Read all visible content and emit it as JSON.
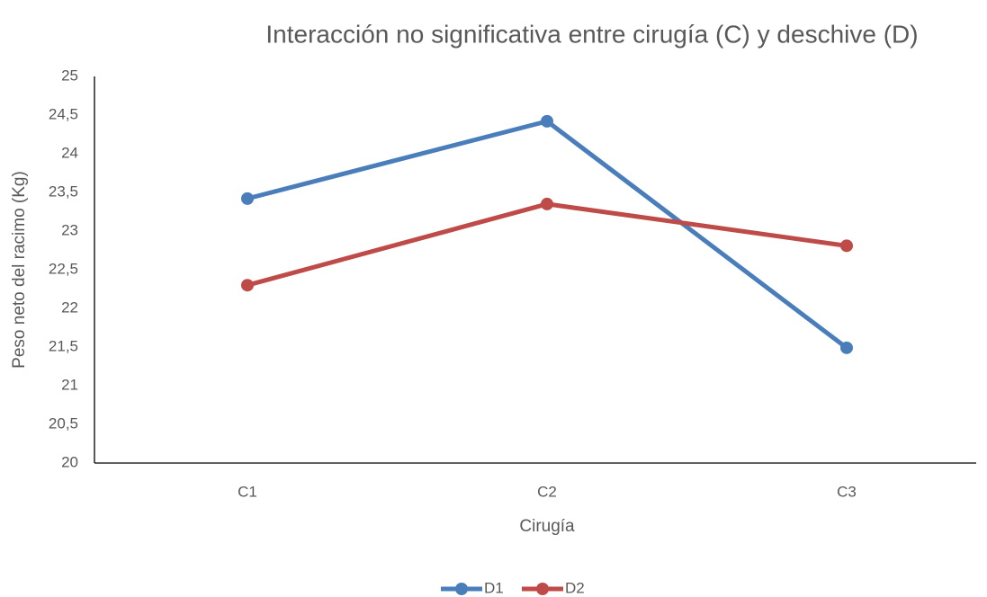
{
  "chart_data": {
    "type": "line",
    "title": "Interacción no significativa entre cirugía (C) y deschive (D)",
    "x_label": "Cirugía",
    "y_label": "Peso neto del racimo (Kg)",
    "categories": [
      "C1",
      "C2",
      "C3"
    ],
    "series": [
      {
        "name": "D1",
        "color": "#4a7ebb",
        "values": [
          23.42,
          24.42,
          21.49
        ]
      },
      {
        "name": "D2",
        "color": "#be4b48",
        "values": [
          22.3,
          23.35,
          22.81
        ]
      }
    ],
    "ylim": [
      20,
      25
    ],
    "yticks": [
      20,
      {
        "value": 20.5,
        "label": "20,5"
      },
      21,
      {
        "value": 21.5,
        "label": "21,5"
      },
      22,
      {
        "value": 22.5,
        "label": "22,5"
      },
      23,
      {
        "value": 23.5,
        "label": "23,5"
      },
      24,
      {
        "value": 24.5,
        "label": "24,5"
      },
      25
    ],
    "grid": false,
    "legend": "bottom"
  }
}
